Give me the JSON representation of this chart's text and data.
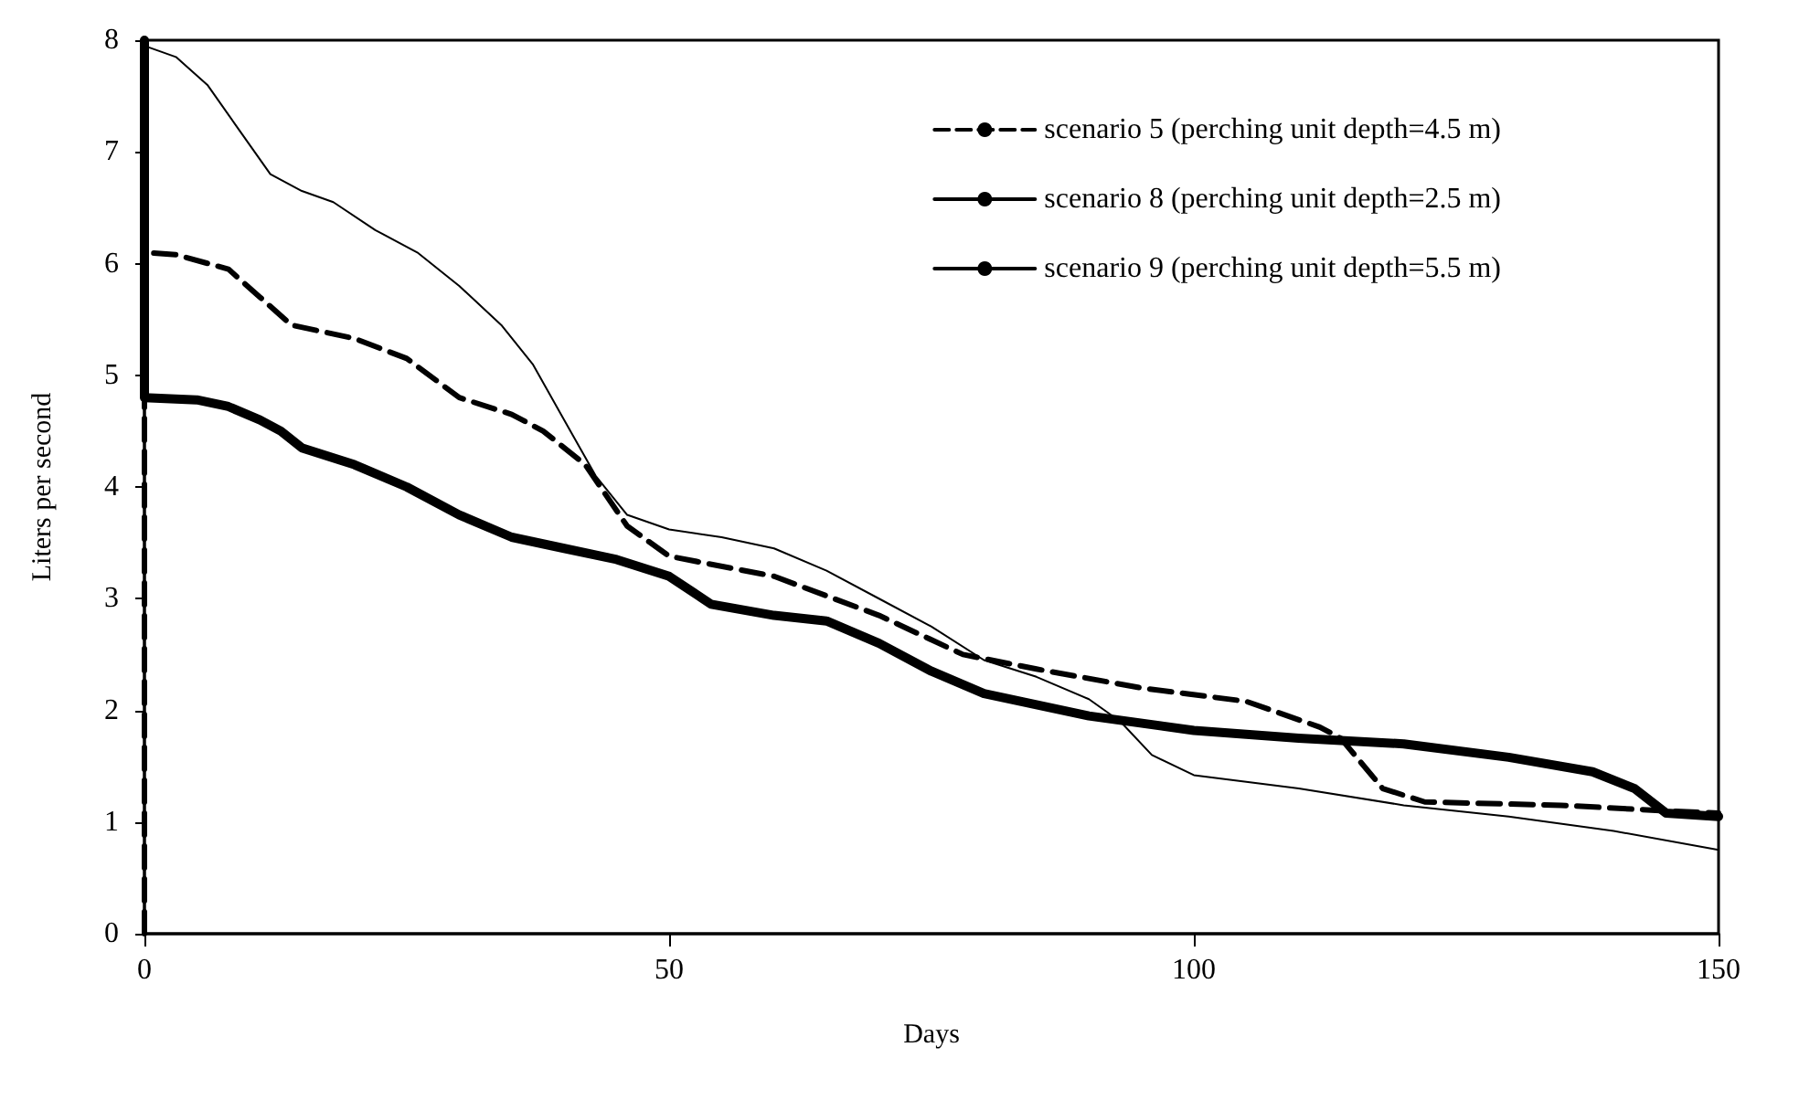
{
  "chart_data": {
    "type": "line",
    "xlabel": "Days",
    "ylabel": "Liters per second",
    "xlim": [
      0,
      150
    ],
    "xticks": [
      0,
      50,
      100,
      150
    ],
    "ylim": [
      0,
      8
    ],
    "yticks": [
      0,
      1,
      2,
      3,
      4,
      5,
      6,
      7,
      8
    ],
    "grid": false,
    "legend": "top right",
    "marker": "none",
    "series": [
      {
        "name": "scenario 5 (perching unit depth=4.5 m)",
        "color": "#000000",
        "line_style": "dashed",
        "x": [
          0,
          0,
          3,
          8,
          11,
          14,
          20,
          25,
          30,
          35,
          38,
          42,
          46,
          50,
          60,
          70,
          78,
          85,
          95,
          105,
          112,
          114,
          118,
          122,
          135,
          145,
          150
        ],
        "values": [
          0,
          6.1,
          6.08,
          5.95,
          5.7,
          5.45,
          5.33,
          5.15,
          4.8,
          4.65,
          4.5,
          4.2,
          3.65,
          3.38,
          3.2,
          2.85,
          2.5,
          2.37,
          2.2,
          2.08,
          1.85,
          1.75,
          1.3,
          1.18,
          1.15,
          1.1,
          1.08
        ]
      },
      {
        "name": "scenario 8 (perching unit depth=2.5 m)",
        "color": "#000000",
        "line_style": "solid",
        "x": [
          0,
          0,
          5,
          8,
          11,
          13,
          15,
          20,
          25,
          30,
          35,
          40,
          45,
          50,
          54,
          60,
          65,
          70,
          75,
          80,
          90,
          100,
          110,
          120,
          130,
          138,
          142,
          145,
          150
        ],
        "values": [
          8,
          4.8,
          4.78,
          4.72,
          4.6,
          4.5,
          4.35,
          4.2,
          4.0,
          3.75,
          3.55,
          3.45,
          3.35,
          3.2,
          2.95,
          2.85,
          2.8,
          2.6,
          2.35,
          2.15,
          1.95,
          1.82,
          1.75,
          1.7,
          1.58,
          1.45,
          1.3,
          1.08,
          1.05
        ]
      },
      {
        "name": "scenario 9 (perching unit depth=5.5 m)",
        "color": "#000000",
        "line_style": "solid",
        "x": [
          0,
          3,
          6,
          9,
          12,
          15,
          18,
          22,
          26,
          30,
          34,
          37,
          40,
          43,
          46,
          50,
          55,
          60,
          65,
          70,
          75,
          80,
          85,
          90,
          93,
          96,
          100,
          110,
          120,
          130,
          140,
          150
        ],
        "values": [
          7.95,
          7.85,
          7.6,
          7.2,
          6.8,
          6.65,
          6.55,
          6.3,
          6.1,
          5.8,
          5.45,
          5.1,
          4.6,
          4.1,
          3.75,
          3.62,
          3.55,
          3.45,
          3.25,
          3.0,
          2.75,
          2.45,
          2.3,
          2.1,
          1.9,
          1.6,
          1.42,
          1.3,
          1.15,
          1.05,
          0.92,
          0.75
        ]
      }
    ]
  }
}
